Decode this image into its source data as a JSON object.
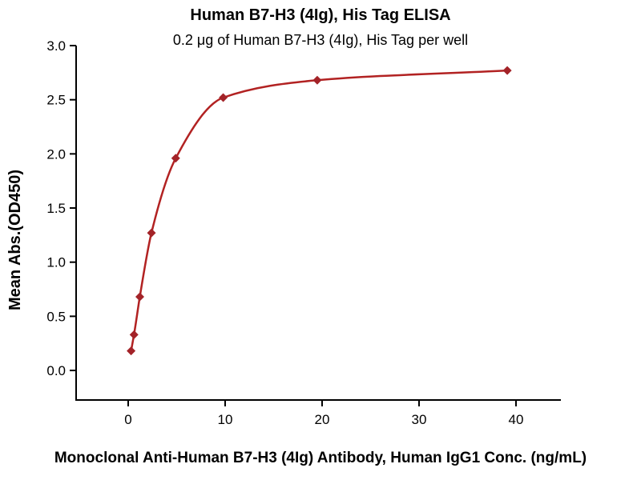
{
  "page": {
    "background": "#ffffff"
  },
  "chart_data": {
    "type": "scatter",
    "title": "Human B7-H3 (4Ig), His Tag ELISA",
    "subtitle": "0.2 μg of Human B7-H3 (4Ig), His Tag per well",
    "xlabel": "Monoclonal Anti-Human B7-H3 (4Ig) Antibody, Human IgG1 Conc. (ng/mL)",
    "ylabel": "Mean Abs.(OD450)",
    "x": [
      0.3,
      0.6,
      1.2,
      2.4,
      4.9,
      9.8,
      19.5,
      39.1
    ],
    "y": [
      0.18,
      0.33,
      0.68,
      1.27,
      1.96,
      2.52,
      2.68,
      2.77
    ],
    "marker": "diamond",
    "curve": "smooth fit through points",
    "grid": false,
    "legend": "none",
    "xlim": [
      -5.37,
      44.63
    ],
    "ylim": [
      -0.273,
      3.0
    ],
    "xticks": [
      0,
      10,
      20,
      30,
      40
    ],
    "xtick_labels": [
      "0",
      "10",
      "20",
      "30",
      "40"
    ],
    "yticks": [
      0,
      0.5,
      1.0,
      1.5,
      2.0,
      2.5,
      3.0
    ],
    "ytick_labels": [
      "0.0",
      "0.5",
      "1.0",
      "1.5",
      "2.0",
      "2.5",
      "3.0"
    ],
    "colors": {
      "curve": "#b22222",
      "marker": "#a32328",
      "axis": "#000000",
      "text": "#000000"
    }
  }
}
